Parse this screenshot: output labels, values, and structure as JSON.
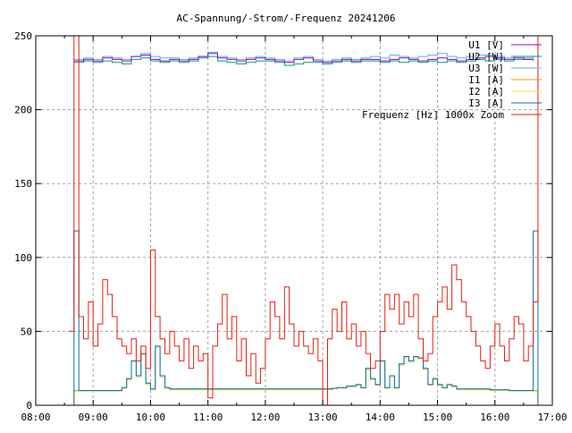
{
  "chart_data": {
    "type": "line",
    "title": "AC-Spannung/-Strom/-Frequenz 20241206",
    "xlabel": "",
    "ylabel": "",
    "xlim": [
      "08:00",
      "17:00"
    ],
    "ylim": [
      0,
      250
    ],
    "grid": true,
    "legend_position": "top-right",
    "x_ticks": [
      "08:00",
      "09:00",
      "10:00",
      "11:00",
      "12:00",
      "13:00",
      "14:00",
      "15:00",
      "16:00",
      "17:00"
    ],
    "y_ticks": [
      "0",
      "50",
      "100",
      "150",
      "200",
      "250"
    ],
    "series": [
      {
        "name": "U1 [V]",
        "color": "#9400d3",
        "x_start": "08:40",
        "x_step_min": 10,
        "values": [
          233,
          234,
          233,
          235,
          234,
          233,
          236,
          237,
          234,
          233,
          234,
          233,
          234,
          236,
          238,
          235,
          234,
          233,
          234,
          235,
          234,
          233,
          232,
          234,
          235,
          233,
          232,
          233,
          234,
          233,
          234,
          234,
          233,
          234,
          235,
          234,
          233,
          234,
          235,
          234,
          233,
          234,
          235,
          236,
          235,
          234,
          235,
          234,
          234
        ]
      },
      {
        "name": "U2 [W]",
        "color": "#009e73",
        "x_start": "08:40",
        "x_step_min": 10,
        "values": [
          232,
          233,
          232,
          233,
          232,
          231,
          234,
          235,
          233,
          232,
          233,
          232,
          233,
          235,
          236,
          233,
          232,
          231,
          232,
          233,
          233,
          232,
          230,
          231,
          232,
          232,
          231,
          232,
          233,
          232,
          233,
          233,
          232,
          233,
          232,
          233,
          232,
          233,
          232,
          233,
          232,
          233,
          234,
          233,
          234,
          233,
          234,
          234,
          233
        ]
      },
      {
        "name": "U3 [W]",
        "color": "#56b4e9",
        "x_start": "08:40",
        "x_step_min": 10,
        "values": [
          234,
          235,
          234,
          236,
          235,
          234,
          236,
          238,
          236,
          235,
          235,
          234,
          235,
          236,
          239,
          236,
          235,
          234,
          235,
          236,
          235,
          234,
          233,
          235,
          236,
          234,
          233,
          234,
          235,
          234,
          235,
          236,
          235,
          237,
          236,
          235,
          236,
          237,
          238,
          236,
          235,
          236,
          237,
          237,
          236,
          235,
          236,
          235,
          236
        ]
      },
      {
        "name": "I1 [A]",
        "color": "#e69f00",
        "x_start": "08:35",
        "x_step_min": 5,
        "values": [
          0,
          10,
          10,
          10,
          10,
          10,
          10,
          10,
          10,
          10,
          10,
          12,
          18,
          30,
          20,
          35,
          15,
          11,
          40,
          20,
          12,
          11,
          11,
          11,
          11,
          11,
          11,
          11,
          11,
          11,
          11,
          11,
          11,
          11,
          11,
          11,
          11,
          11,
          11,
          11,
          11,
          11,
          11,
          11,
          11,
          11,
          11,
          11,
          11,
          11,
          11,
          11,
          11,
          11,
          11,
          11.5,
          12,
          12,
          13,
          13,
          14,
          12,
          25,
          18,
          14,
          30,
          12,
          20,
          12,
          28,
          33,
          30,
          33,
          32,
          25,
          14,
          18,
          14,
          12,
          14,
          13,
          11,
          11,
          11,
          11,
          11,
          11,
          11,
          10.5,
          10.5,
          10.5,
          10.5,
          10,
          10,
          10,
          10,
          10,
          10,
          0
        ]
      },
      {
        "name": "I2 [A]",
        "color": "#f0e442",
        "x_start": "08:35",
        "x_step_min": 5,
        "values": [
          0,
          9.5,
          9.5,
          9.5,
          9.5,
          9.5,
          9.5,
          9.5,
          9.5,
          9.5,
          9.5,
          11.5,
          17,
          29,
          19,
          34,
          14,
          10.5,
          39,
          19,
          11.5,
          10.5,
          10.5,
          10.5,
          10.5,
          10.5,
          10.5,
          10.5,
          10.5,
          10.5,
          10.5,
          10.5,
          10.5,
          10.5,
          10.5,
          10.5,
          10.5,
          10.5,
          10.5,
          10.5,
          10.5,
          10.5,
          10.5,
          10.5,
          10.5,
          10.5,
          10.5,
          10.5,
          10.5,
          10.5,
          10.5,
          10.5,
          10.5,
          10.5,
          10.5,
          11,
          11.5,
          11.5,
          12.5,
          12.5,
          13.5,
          11.5,
          24,
          17,
          13.5,
          29,
          11.5,
          19,
          11.5,
          27,
          32,
          29,
          32,
          31,
          24,
          13.5,
          17,
          13.5,
          11.5,
          13.5,
          12.5,
          10.5,
          10.5,
          10.5,
          10.5,
          10.5,
          10.5,
          10.5,
          10,
          10,
          10,
          10,
          9.5,
          9.5,
          9.5,
          9.5,
          9.5,
          9.5,
          0
        ]
      },
      {
        "name": "I3 [A]",
        "color": "#0072b2",
        "x_start": "08:35",
        "x_step_min": 5,
        "values": [
          0,
          118,
          10,
          10,
          10,
          10,
          10,
          10,
          10,
          10,
          10,
          12,
          18,
          30,
          20,
          35,
          15,
          11,
          40,
          20,
          12,
          11,
          11,
          11,
          11,
          11,
          11,
          11,
          11,
          11,
          11,
          11,
          11,
          11,
          11,
          11,
          11,
          11,
          11,
          11,
          11,
          11,
          11,
          11,
          11,
          11,
          11,
          11,
          11,
          11,
          11,
          11,
          11,
          11,
          11,
          11.5,
          12,
          12,
          13,
          13,
          14,
          12,
          25,
          18,
          14,
          30,
          12,
          20,
          12,
          28,
          33,
          30,
          33,
          32,
          25,
          14,
          18,
          14,
          12,
          14,
          13,
          11,
          11,
          11,
          11,
          11,
          11,
          11,
          10.5,
          10.5,
          10.5,
          10.5,
          10,
          10,
          10,
          10,
          10,
          118,
          0
        ]
      },
      {
        "name": "Frequenz [Hz] 1000x Zoom",
        "color": "#e51e10",
        "x_start": "08:35",
        "x_step_min": 5,
        "values": [
          50,
          250,
          60,
          45,
          70,
          40,
          55,
          85,
          75,
          60,
          45,
          40,
          35,
          45,
          30,
          40,
          25,
          105,
          60,
          45,
          35,
          50,
          40,
          30,
          45,
          25,
          40,
          30,
          35,
          5,
          40,
          55,
          75,
          45,
          60,
          30,
          45,
          20,
          35,
          15,
          25,
          45,
          70,
          60,
          45,
          80,
          55,
          40,
          50,
          40,
          35,
          45,
          30,
          0,
          45,
          65,
          50,
          70,
          45,
          55,
          40,
          50,
          35,
          25,
          30,
          50,
          75,
          65,
          75,
          55,
          70,
          60,
          75,
          45,
          30,
          35,
          60,
          70,
          80,
          65,
          95,
          85,
          70,
          60,
          50,
          40,
          30,
          25,
          40,
          55,
          40,
          30,
          45,
          60,
          55,
          30,
          40,
          70,
          250
        ]
      }
    ]
  }
}
